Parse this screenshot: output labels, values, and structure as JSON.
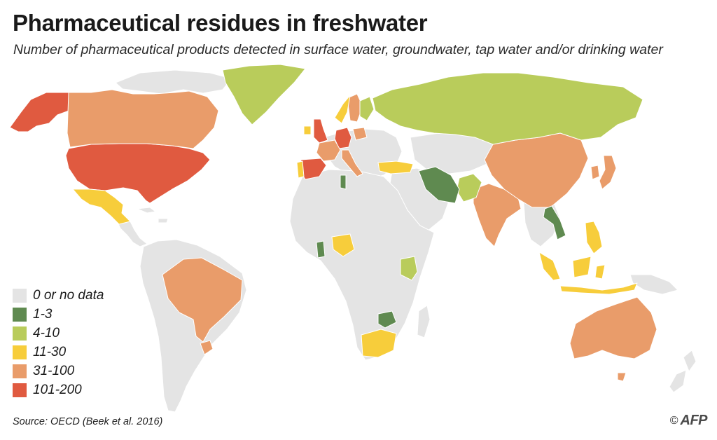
{
  "header": {
    "title": "Pharmaceutical residues in freshwater",
    "subtitle": "Number of pharmaceutical products detected in surface water, groundwater, tap water and/or drinking water"
  },
  "colors": {
    "none": "#e4e4e4",
    "c1_3": "#5f8a50",
    "c4_10": "#b9cc5b",
    "c11_30": "#f7cd3b",
    "c31_100": "#e99c6a",
    "c101_200": "#e05a40",
    "border": "#ffffff"
  },
  "legend": [
    {
      "label": "0 or no data",
      "color": "#e4e4e4"
    },
    {
      "label": "1-3",
      "color": "#5f8a50"
    },
    {
      "label": "4-10",
      "color": "#b9cc5b"
    },
    {
      "label": "11-30",
      "color": "#f7cd3b"
    },
    {
      "label": "31-100",
      "color": "#e99c6a"
    },
    {
      "label": "101-200",
      "color": "#e05a40"
    }
  ],
  "regions": [
    {
      "name": "Alaska",
      "category": "101-200"
    },
    {
      "name": "Canada",
      "category": "31-100"
    },
    {
      "name": "Greenland",
      "category": "4-10"
    },
    {
      "name": "United States",
      "category": "101-200"
    },
    {
      "name": "Mexico",
      "category": "11-30"
    },
    {
      "name": "Brazil",
      "category": "31-100"
    },
    {
      "name": "Uruguay",
      "category": "31-100"
    },
    {
      "name": "United Kingdom",
      "category": "101-200"
    },
    {
      "name": "Ireland",
      "category": "11-30"
    },
    {
      "name": "Spain",
      "category": "101-200"
    },
    {
      "name": "Portugal",
      "category": "11-30"
    },
    {
      "name": "France",
      "category": "31-100"
    },
    {
      "name": "Germany",
      "category": "101-200"
    },
    {
      "name": "Italy",
      "category": "31-100"
    },
    {
      "name": "Norway",
      "category": "11-30"
    },
    {
      "name": "Sweden",
      "category": "31-100"
    },
    {
      "name": "Finland",
      "category": "4-10"
    },
    {
      "name": "Poland",
      "category": "31-100"
    },
    {
      "name": "Russia",
      "category": "4-10"
    },
    {
      "name": "Turkey",
      "category": "11-30"
    },
    {
      "name": "Iran",
      "category": "1-3"
    },
    {
      "name": "Pakistan",
      "category": "4-10"
    },
    {
      "name": "India",
      "category": "31-100"
    },
    {
      "name": "China",
      "category": "31-100"
    },
    {
      "name": "Japan",
      "category": "31-100"
    },
    {
      "name": "South Korea",
      "category": "31-100"
    },
    {
      "name": "Vietnam",
      "category": "1-3"
    },
    {
      "name": "Philippines",
      "category": "11-30"
    },
    {
      "name": "Indonesia",
      "category": "11-30"
    },
    {
      "name": "Australia",
      "category": "31-100"
    },
    {
      "name": "Tunisia",
      "category": "1-3"
    },
    {
      "name": "Ghana",
      "category": "1-3"
    },
    {
      "name": "Nigeria",
      "category": "11-30"
    },
    {
      "name": "Kenya",
      "category": "4-10"
    },
    {
      "name": "Zimbabwe",
      "category": "1-3"
    },
    {
      "name": "South Africa",
      "category": "11-30"
    }
  ],
  "footer": {
    "source": "Source: OECD (Beek et al. 2016)",
    "copyright": "©",
    "agency": "AFP"
  }
}
